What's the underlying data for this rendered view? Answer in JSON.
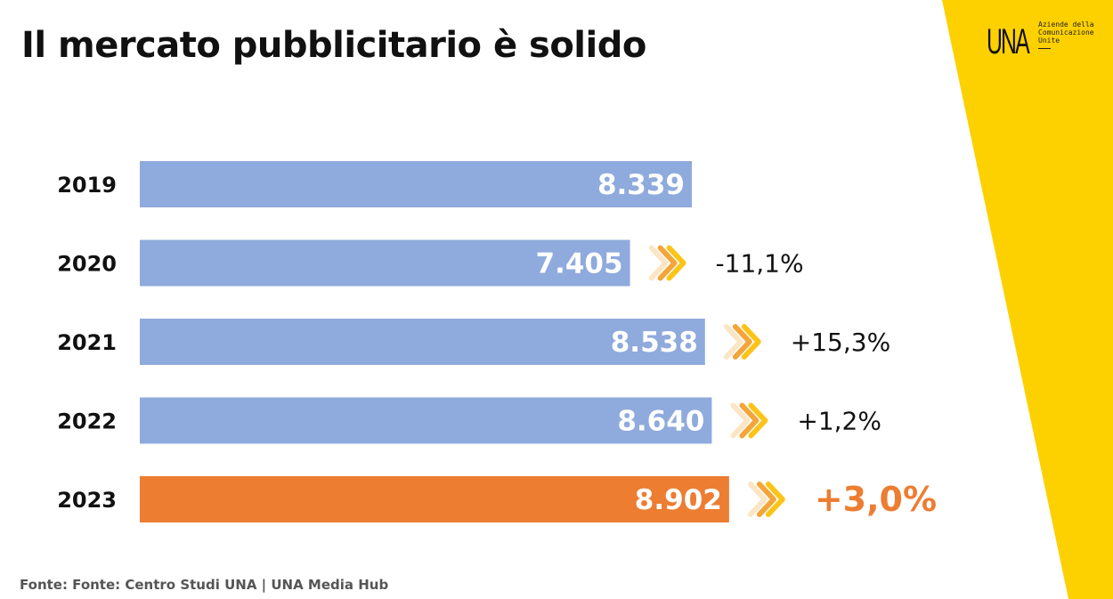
{
  "header": {
    "title": "Il mercato pubblicitario è solido"
  },
  "logo": {
    "mark": "UNA",
    "text": "Aziende della Comunicazione Unite"
  },
  "chart_data": {
    "type": "bar",
    "orientation": "horizontal",
    "categories": [
      "2019",
      "2020",
      "2021",
      "2022",
      "2023"
    ],
    "values": [
      8339,
      7405,
      8538,
      8640,
      8902
    ],
    "value_labels": [
      "8.339",
      "7.405",
      "8.538",
      "8.640",
      "8.902"
    ],
    "changes": [
      null,
      "-11,1%",
      "+15,3%",
      "+1,2%",
      "+3,0%"
    ],
    "highlight_index": 4,
    "colors": {
      "bar": "#8faadc",
      "highlight_bar": "#ed7d31",
      "highlight_text": "#ed7d31",
      "arrow_light": "#fae6c5",
      "arrow_mid": "#f4a53a",
      "arrow_dark": "#fcc419",
      "band": "#fdd000"
    },
    "xlim": [
      0,
      9700
    ]
  },
  "footer": {
    "source": "Fonte: Fonte: Centro Studi UNA | UNA Media Hub"
  }
}
